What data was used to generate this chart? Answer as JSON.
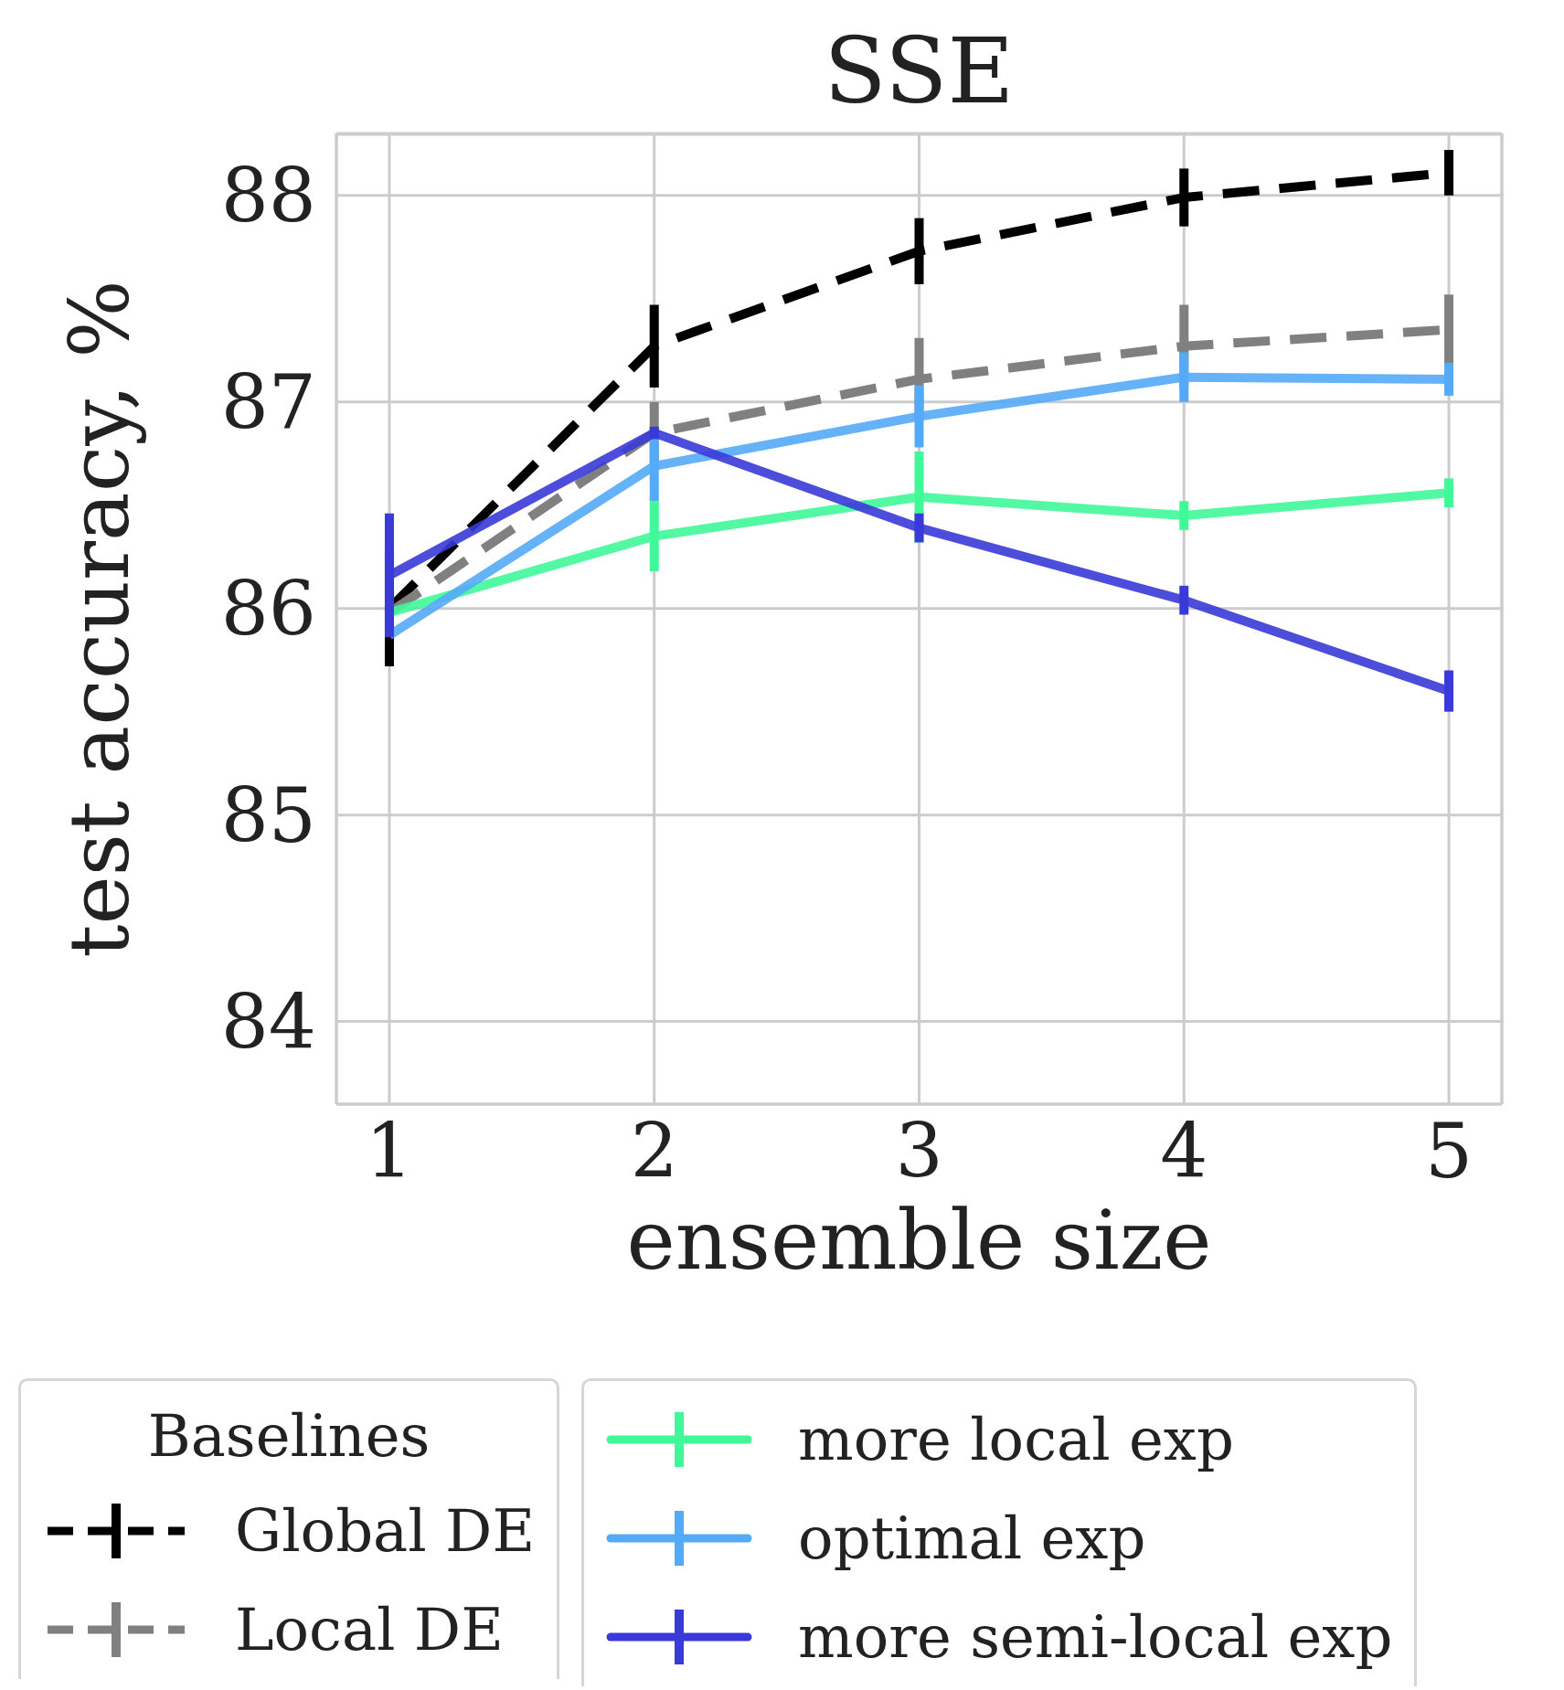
{
  "chart_data": {
    "type": "line",
    "title": "SSE",
    "xlabel": "ensemble size",
    "ylabel": "test accuracy, %",
    "legend_title": "Baselines",
    "x": [
      1,
      2,
      3,
      4,
      5
    ],
    "xlim": [
      0.8,
      5.2
    ],
    "xticks": [
      1,
      2,
      3,
      4,
      5
    ],
    "ylim": [
      83.6,
      88.3
    ],
    "yticks": [
      84,
      85,
      86,
      87,
      88
    ],
    "grid": true,
    "legend": "bottom",
    "marker": "none",
    "series": [
      {
        "name": "Global DE",
        "color": "#000000",
        "line_style": "dashed",
        "values": [
          86.0,
          87.27,
          87.73,
          87.99,
          88.11
        ],
        "errors": [
          0.28,
          0.2,
          0.16,
          0.14,
          0.11
        ]
      },
      {
        "name": "Local DE",
        "color": "#808080",
        "line_style": "dashed",
        "values": [
          85.98,
          86.85,
          87.11,
          87.27,
          87.35
        ],
        "errors": [
          null,
          0.15,
          0.2,
          0.2,
          0.17
        ]
      },
      {
        "name": "more local exp",
        "color": "#40f898",
        "line_style": "solid",
        "values": [
          85.98,
          86.35,
          86.54,
          86.45,
          86.56
        ],
        "errors": [
          null,
          0.17,
          0.22,
          0.07,
          0.07
        ]
      },
      {
        "name": "optimal exp",
        "color": "#55aaf8",
        "line_style": "solid",
        "values": [
          85.87,
          86.69,
          86.93,
          87.12,
          87.11
        ],
        "errors": [
          null,
          0.17,
          0.15,
          0.12,
          0.08
        ]
      },
      {
        "name": "more semi-local exp",
        "color": "#3a3ad8",
        "line_style": "solid",
        "values": [
          86.16,
          86.85,
          86.39,
          86.04,
          85.6
        ],
        "errors": [
          0.3,
          0.03,
          0.07,
          0.07,
          0.1
        ]
      }
    ]
  }
}
